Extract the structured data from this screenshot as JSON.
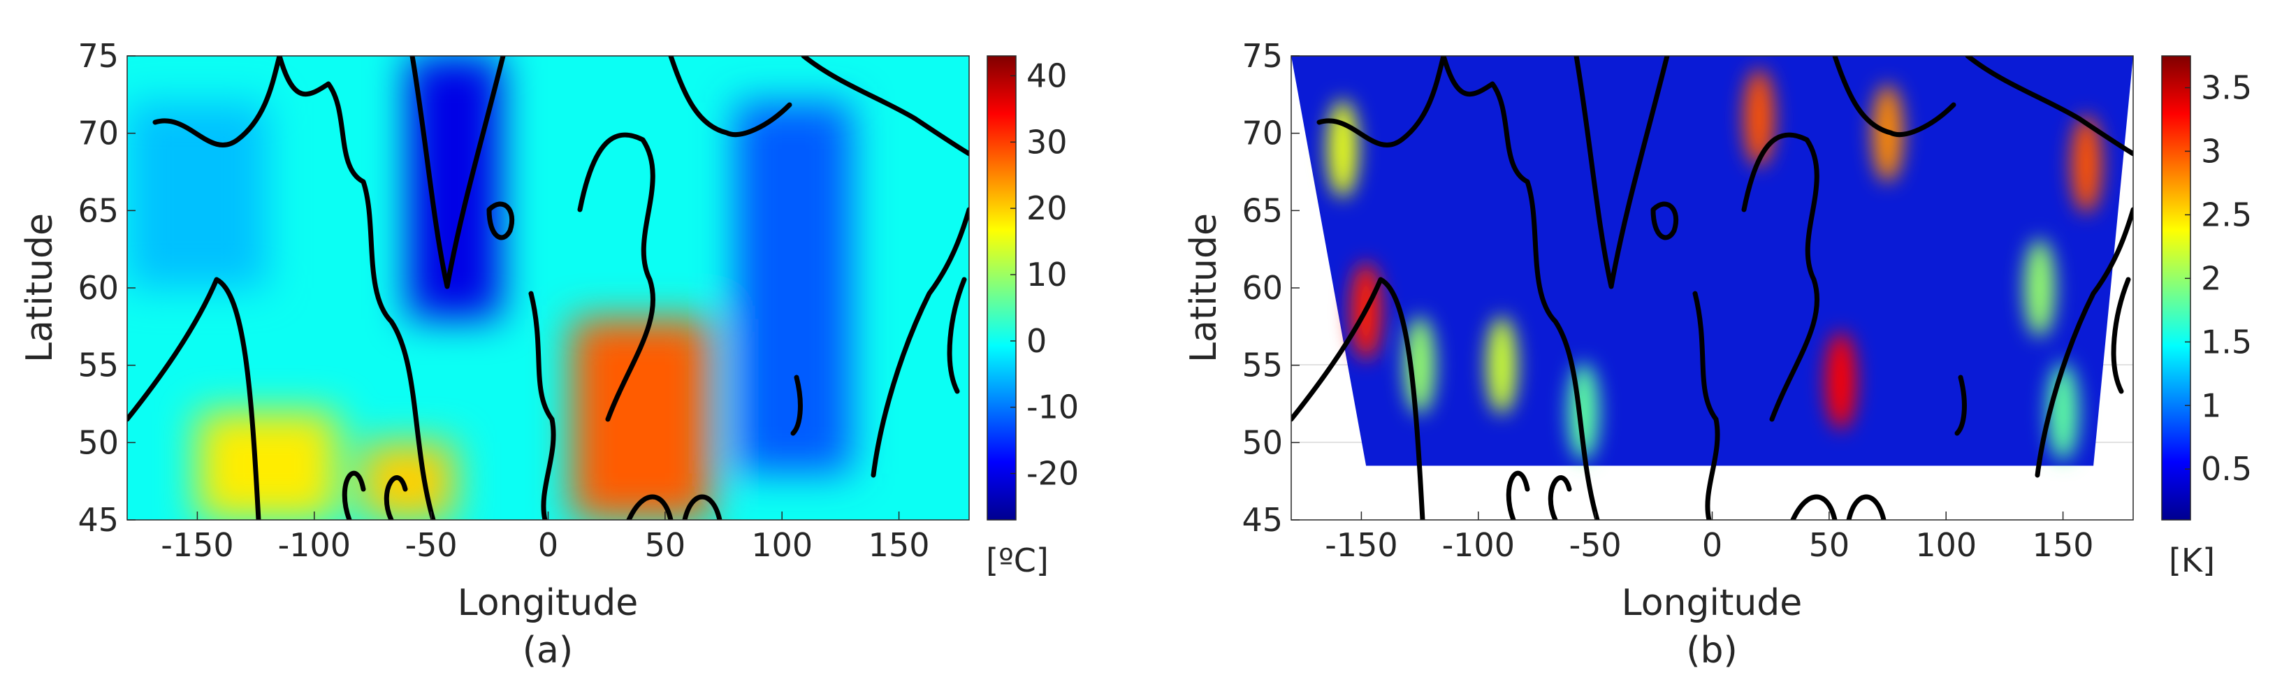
{
  "chart_data": [
    {
      "type": "heatmap",
      "panel_label": "(a)",
      "xlabel": "Longitude",
      "ylabel": "Latitude",
      "xlim": [
        -180,
        180
      ],
      "ylim": [
        45,
        75
      ],
      "xticks": [
        -150,
        -100,
        -50,
        0,
        50,
        100,
        150
      ],
      "yticks": [
        45,
        50,
        55,
        60,
        65,
        70,
        75
      ],
      "colorbar": {
        "unit": "[ºC]",
        "range": [
          -27,
          43
        ],
        "ticks": [
          40,
          30,
          20,
          10,
          0,
          -10,
          -20
        ],
        "colormap": "jet"
      },
      "overlay": "coastlines",
      "regions": [
        {
          "lon": [
            -180,
            180
          ],
          "lat": [
            45,
            75
          ],
          "value": 0
        },
        {
          "lon": [
            -60,
            -20
          ],
          "lat": [
            58,
            75
          ],
          "value": -20
        },
        {
          "lon": [
            80,
            130
          ],
          "lat": [
            48,
            72
          ],
          "value": -12
        },
        {
          "lon": [
            -150,
            -90
          ],
          "lat": [
            45,
            52
          ],
          "value": 18
        },
        {
          "lon": [
            10,
            70
          ],
          "lat": [
            45,
            58
          ],
          "value": 28
        },
        {
          "lon": [
            -80,
            -40
          ],
          "lat": [
            45,
            50
          ],
          "value": 20
        },
        {
          "lon": [
            -180,
            -120
          ],
          "lat": [
            60,
            72
          ],
          "value": -5
        }
      ]
    },
    {
      "type": "heatmap",
      "panel_label": "(b)",
      "xlabel": "Longitude",
      "ylabel": "Latitude",
      "xlim": [
        -180,
        180
      ],
      "ylim": [
        45,
        75
      ],
      "xticks": [
        -150,
        -100,
        -50,
        0,
        50,
        100,
        150
      ],
      "yticks": [
        45,
        50,
        55,
        60,
        65,
        70,
        75
      ],
      "data_extent": {
        "lat_min": 48.5,
        "lon_min_at_lat_min": -148,
        "lon_min_at_lat_max": -180,
        "lon_max_at_lat_min": 163,
        "lon_max_at_lat_max": 180
      },
      "colorbar": {
        "unit": "[K]",
        "range": [
          0.1,
          3.75
        ],
        "ticks": [
          3.5,
          3,
          2.5,
          2,
          1.5,
          1,
          0.5
        ],
        "colormap": "jet"
      },
      "overlay": "coastlines",
      "hotspots": [
        {
          "lon": -148,
          "lat": 58.5,
          "value": 3.2
        },
        {
          "lon": -158,
          "lat": 69,
          "value": 2.3
        },
        {
          "lon": -125,
          "lat": 55,
          "value": 2.0
        },
        {
          "lon": -90,
          "lat": 55,
          "value": 2.2
        },
        {
          "lon": -55,
          "lat": 52,
          "value": 1.8
        },
        {
          "lon": 20,
          "lat": 71,
          "value": 3.0
        },
        {
          "lon": 55,
          "lat": 54,
          "value": 3.3
        },
        {
          "lon": 75,
          "lat": 70,
          "value": 2.8
        },
        {
          "lon": 140,
          "lat": 60,
          "value": 2.0
        },
        {
          "lon": 160,
          "lat": 68,
          "value": 3.0
        },
        {
          "lon": 150,
          "lat": 52,
          "value": 1.8
        }
      ]
    }
  ]
}
